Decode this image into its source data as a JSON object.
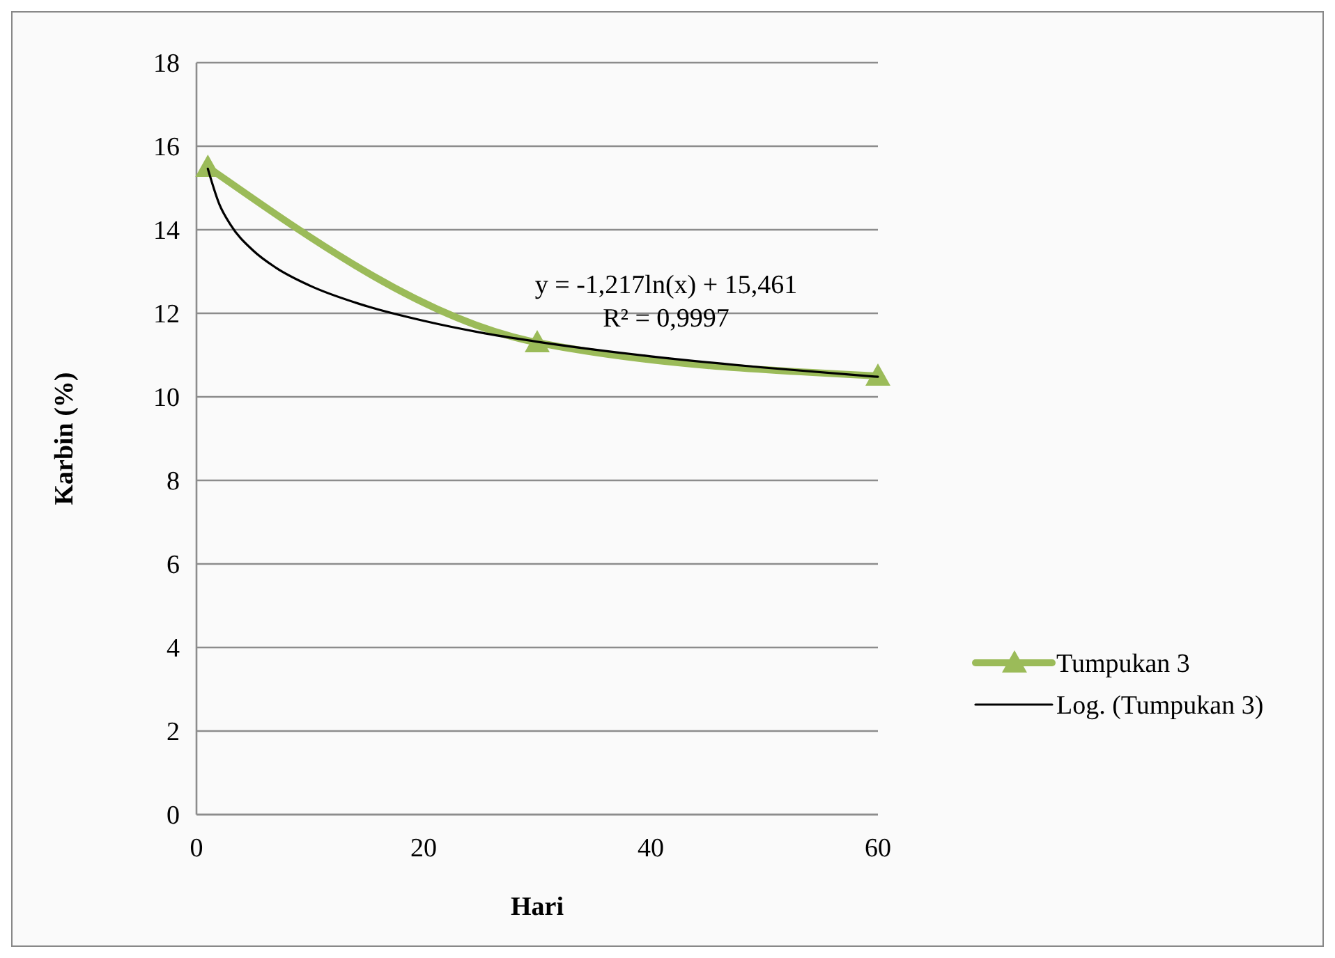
{
  "chart_data": {
    "type": "line",
    "xlabel": "Hari",
    "ylabel": "Karbin (%)",
    "xlim": [
      0,
      60
    ],
    "xticks": [
      0,
      20,
      40,
      60
    ],
    "ylim": [
      0,
      18
    ],
    "yticks": [
      0,
      2,
      4,
      6,
      8,
      10,
      12,
      14,
      16,
      18
    ],
    "grid": "y",
    "legend": "right",
    "series": [
      {
        "name": "Tumpukan 3",
        "color": "#9bbb59",
        "marker": "triangle",
        "x": [
          1,
          30,
          60
        ],
        "values": [
          15.5,
          11.3,
          10.5
        ]
      },
      {
        "name": "Log. (Tumpukan 3)",
        "color": "#000000",
        "marker": "none",
        "x": [
          1,
          2,
          3,
          5,
          7,
          10,
          15,
          20,
          25,
          30,
          40,
          50,
          60
        ],
        "values": [
          15.46,
          14.62,
          14.12,
          13.5,
          13.09,
          12.66,
          12.17,
          11.82,
          11.54,
          11.32,
          10.97,
          10.7,
          10.48
        ]
      }
    ],
    "annotations": [
      "y = -1,217ln(x) + 15,461",
      "R² = 0,9997"
    ]
  }
}
